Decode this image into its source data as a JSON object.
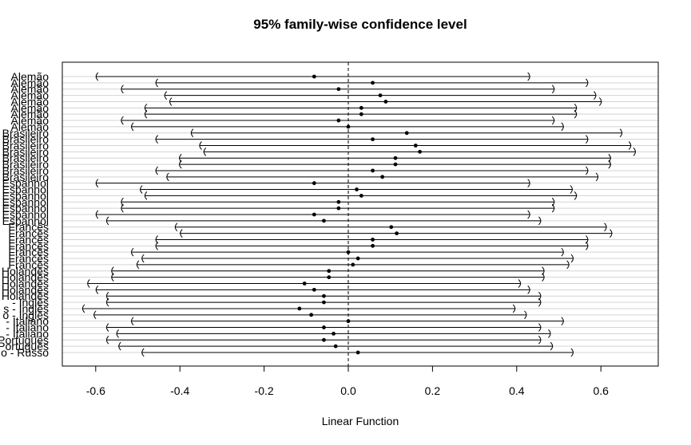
{
  "chart_data": {
    "type": "interval",
    "title": "95% family-wise confidence level",
    "xlabel": "Linear Function",
    "ylabel": "",
    "xlim": [
      -0.6,
      0.6
    ],
    "xticks": [
      -0.6,
      -0.4,
      -0.2,
      0.0,
      0.2,
      0.4,
      0.6
    ],
    "xtick_labels": [
      "-0.6",
      "-0.4",
      "-0.2",
      "0.0",
      "0.2",
      "0.4",
      "0.6"
    ],
    "reference_line": 0.0,
    "grid": "horizontal",
    "comparisons": [
      {
        "label": "Alemão",
        "estimate": -0.081,
        "lower": -0.6,
        "upper": 0.432
      },
      {
        "label": "Alemão",
        "estimate": 0.058,
        "lower": -0.458,
        "upper": 0.57
      },
      {
        "label": "Alemão",
        "estimate": -0.023,
        "lower": -0.54,
        "upper": 0.49
      },
      {
        "label": "Alemão",
        "estimate": 0.076,
        "lower": -0.437,
        "upper": 0.589
      },
      {
        "label": "Alemão",
        "estimate": 0.089,
        "lower": -0.425,
        "upper": 0.602
      },
      {
        "label": "Alemão",
        "estimate": 0.031,
        "lower": -0.484,
        "upper": 0.543
      },
      {
        "label": "Alemão",
        "estimate": 0.031,
        "lower": -0.484,
        "upper": 0.543
      },
      {
        "label": "Alemão",
        "estimate": -0.023,
        "lower": -0.54,
        "upper": 0.49
      },
      {
        "label": "Alemão",
        "estimate": 0.0,
        "lower": -0.516,
        "upper": 0.512
      },
      {
        "label": "Brasileiro",
        "estimate": 0.139,
        "lower": -0.374,
        "upper": 0.651
      },
      {
        "label": "Brasileiro",
        "estimate": 0.058,
        "lower": -0.458,
        "upper": 0.57
      },
      {
        "label": "Brasileiro",
        "estimate": 0.16,
        "lower": -0.354,
        "upper": 0.672
      },
      {
        "label": "Brasileiro",
        "estimate": 0.17,
        "lower": -0.344,
        "upper": 0.683
      },
      {
        "label": "Brasileiro",
        "estimate": 0.112,
        "lower": -0.402,
        "upper": 0.624
      },
      {
        "label": "Brasileiro",
        "estimate": 0.112,
        "lower": -0.402,
        "upper": 0.624
      },
      {
        "label": "Brasileiro",
        "estimate": 0.058,
        "lower": -0.458,
        "upper": 0.57
      },
      {
        "label": "Brasileiro",
        "estimate": 0.081,
        "lower": -0.432,
        "upper": 0.594
      },
      {
        "label": "Espanhol",
        "estimate": -0.081,
        "lower": -0.6,
        "upper": 0.432
      },
      {
        "label": "Espanhol",
        "estimate": 0.02,
        "lower": -0.495,
        "upper": 0.533
      },
      {
        "label": "Espanhol",
        "estimate": 0.031,
        "lower": -0.484,
        "upper": 0.543
      },
      {
        "label": "Espanhol",
        "estimate": -0.023,
        "lower": -0.54,
        "upper": 0.49
      },
      {
        "label": "Espanhol",
        "estimate": -0.023,
        "lower": -0.54,
        "upper": 0.49
      },
      {
        "label": "Espanhol",
        "estimate": -0.081,
        "lower": -0.6,
        "upper": 0.432
      },
      {
        "label": "Espanhol",
        "estimate": -0.058,
        "lower": -0.575,
        "upper": 0.458
      },
      {
        "label": "Francês",
        "estimate": 0.102,
        "lower": -0.412,
        "upper": 0.614
      },
      {
        "label": "Francês",
        "estimate": 0.115,
        "lower": -0.4,
        "upper": 0.627
      },
      {
        "label": "Francês",
        "estimate": 0.058,
        "lower": -0.458,
        "upper": 0.57
      },
      {
        "label": "Francês",
        "estimate": 0.058,
        "lower": -0.458,
        "upper": 0.57
      },
      {
        "label": "Francês",
        "estimate": 0.0,
        "lower": -0.516,
        "upper": 0.512
      },
      {
        "label": "Francês",
        "estimate": 0.023,
        "lower": -0.491,
        "upper": 0.535
      },
      {
        "label": "Francês",
        "estimate": 0.011,
        "lower": -0.503,
        "upper": 0.525
      },
      {
        "label": "Holandês",
        "estimate": -0.046,
        "lower": -0.563,
        "upper": 0.466
      },
      {
        "label": "Holandês",
        "estimate": -0.046,
        "lower": -0.563,
        "upper": 0.466
      },
      {
        "label": "Holandês",
        "estimate": -0.104,
        "lower": -0.62,
        "upper": 0.41
      },
      {
        "label": "Holandês",
        "estimate": -0.081,
        "lower": -0.6,
        "upper": 0.432
      },
      {
        "label": "Holandês",
        "estimate": -0.058,
        "lower": -0.575,
        "upper": 0.458
      },
      {
        "label": "Inglês",
        "estimate": -0.058,
        "lower": -0.575,
        "upper": 0.458
      },
      {
        "label": "Inglês",
        "estimate": -0.116,
        "lower": -0.632,
        "upper": 0.397
      },
      {
        "label": "Inglês",
        "estimate": -0.088,
        "lower": -0.605,
        "upper": 0.424
      },
      {
        "label": "Italiano",
        "estimate": 0.0,
        "lower": -0.516,
        "upper": 0.512
      },
      {
        "label": "Italiano",
        "estimate": -0.058,
        "lower": -0.575,
        "upper": 0.458
      },
      {
        "label": "Italiano",
        "estimate": -0.035,
        "lower": -0.551,
        "upper": 0.481
      },
      {
        "label": "Português",
        "estimate": -0.058,
        "lower": -0.575,
        "upper": 0.458
      },
      {
        "label": "Português",
        "estimate": -0.03,
        "lower": -0.546,
        "upper": 0.486
      },
      {
        "label": "Russo",
        "estimate": 0.023,
        "lower": -0.491,
        "upper": 0.535
      }
    ],
    "ytick_labels": [
      "Alemão",
      "Alemão",
      "Alemão",
      "Alemão",
      "Alemão",
      "Alemão",
      "Alemão",
      "Alemão",
      "Alemão",
      "Brasileiro",
      "Brasileiro",
      "Brasileiro",
      "Brasileiro",
      "Brasileiro",
      "Brasileiro",
      "Brasileiro",
      "Brasileiro",
      "Espanhol",
      "Espanhol",
      "Espanhol",
      "Espanhol",
      "Espanhol",
      "Espanhol",
      "Espanhol",
      "Francês",
      "Francês",
      "Francês",
      "Francês",
      "Francês",
      "Francês",
      "Francês",
      "Holandês",
      "Holandês",
      "Holandês",
      "Holandês",
      "Holandês",
      "- Inglês",
      "s - Inglês",
      "o - Inglês",
      "- Italiano",
      "- Italiano",
      "- Italiano",
      "Português",
      "Português",
      "o - Russo"
    ]
  }
}
